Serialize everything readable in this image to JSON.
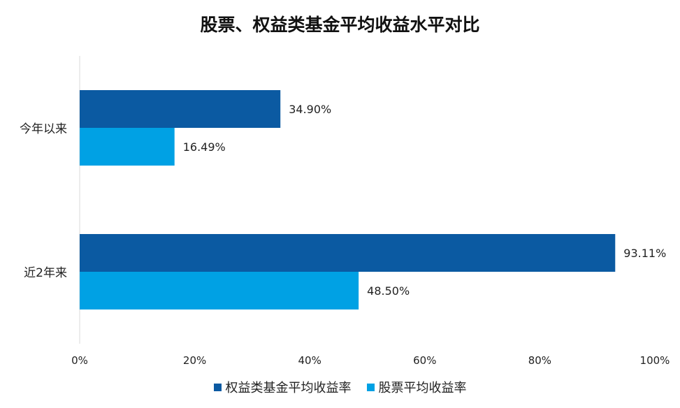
{
  "chart_data": {
    "type": "bar",
    "orientation": "horizontal",
    "title": "股票、权益类基金平均收益水平对比",
    "categories": [
      "今年以来",
      "近2年来"
    ],
    "series": [
      {
        "name": "权益类基金平均收益率",
        "values": [
          34.9,
          93.11
        ],
        "labels": [
          "34.90%",
          "93.11%"
        ],
        "color": "#0b5aa2"
      },
      {
        "name": "股票平均收益率",
        "values": [
          16.49,
          48.5
        ],
        "labels": [
          "16.49%",
          "48.50%"
        ],
        "color": "#00a1e4"
      }
    ],
    "xlim": [
      0,
      100
    ],
    "xticks": [
      "0%",
      "20%",
      "40%",
      "60%",
      "80%",
      "100%"
    ],
    "grid": false,
    "legend_position": "bottom"
  }
}
